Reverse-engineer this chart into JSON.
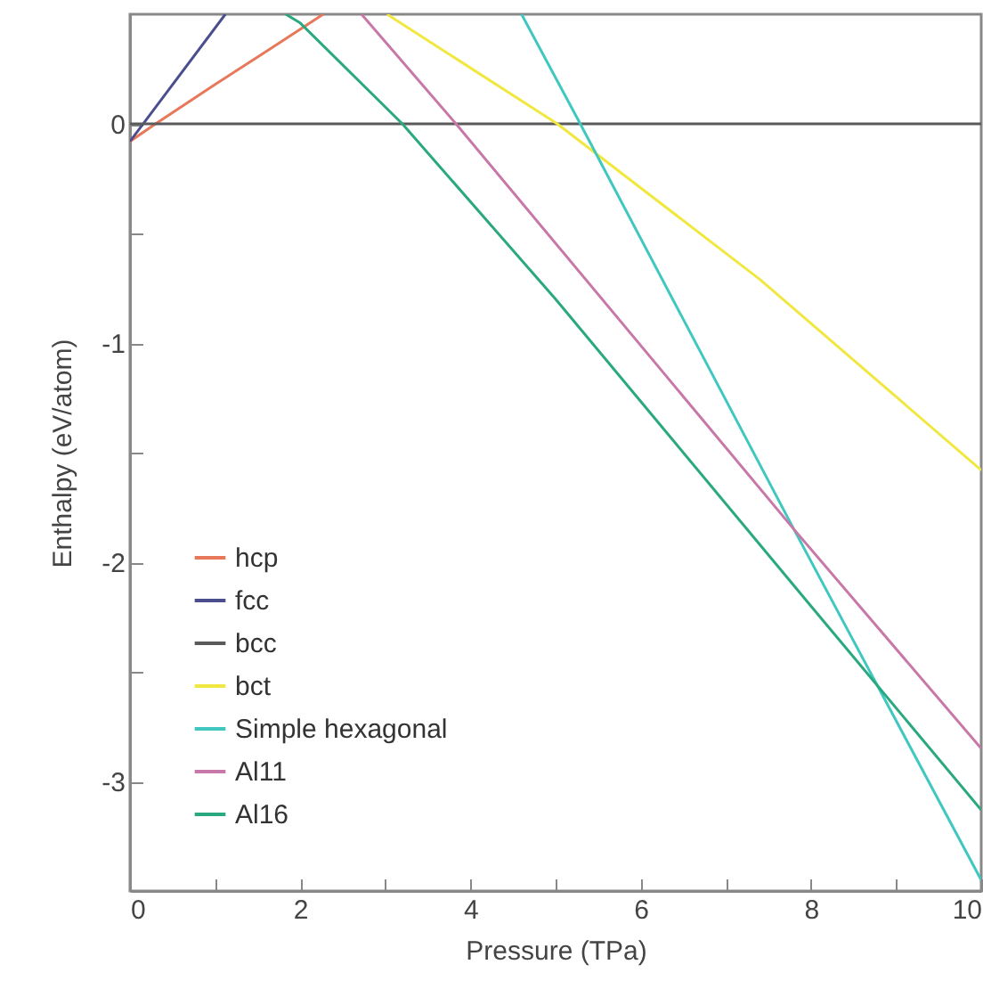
{
  "chart_data": {
    "type": "line",
    "xlabel": "Pressure (TPa)",
    "ylabel": "Enthalpy (eV/atom)",
    "xlim": [
      0,
      10
    ],
    "ylim": [
      -3.5,
      0.5
    ],
    "xticks": [
      0,
      {
        "value": 1,
        "label": null
      },
      2,
      {
        "value": 3,
        "label": null
      },
      4,
      {
        "value": 5,
        "label": null
      },
      6,
      {
        "value": 7,
        "label": null
      },
      8,
      {
        "value": 9,
        "label": null
      },
      10
    ],
    "yticks": [
      {
        "value": -3.5,
        "label": null
      },
      -3,
      {
        "value": -2.5,
        "label": null
      },
      -2,
      {
        "value": -1.5,
        "label": null
      },
      -1,
      {
        "value": -0.5,
        "label": null
      },
      0
    ],
    "grid": false,
    "legend": "bottom left",
    "line_style": "solid",
    "series": [
      {
        "name": "hcp",
        "color": "#e8785a",
        "x": [
          0,
          0.3,
          1,
          1.6,
          2.27
        ],
        "values": [
          -0.08,
          0,
          0.18,
          0.33,
          0.5
        ]
      },
      {
        "name": "fcc",
        "color": "#4a4e8c",
        "x": [
          0,
          1.12
        ],
        "values": [
          -0.08,
          0.5
        ]
      },
      {
        "name": "bcc",
        "color": "#5a5a5a",
        "x": [
          0,
          10
        ],
        "values": [
          0,
          0
        ]
      },
      {
        "name": "bct",
        "color": "#f0e840",
        "x": [
          3.02,
          5.02,
          7.4,
          10
        ],
        "values": [
          0.5,
          0,
          -0.71,
          -1.58
        ]
      },
      {
        "name": "Simple hexagonal",
        "color": "#40c8c0",
        "x": [
          4.6,
          5.29,
          7.8,
          10
        ],
        "values": [
          0.5,
          0,
          -1.85,
          -3.45
        ]
      },
      {
        "name": "Al11",
        "color": "#c878a8",
        "x": [
          2.72,
          3.83,
          7.8,
          10
        ],
        "values": [
          0.5,
          0,
          -1.85,
          -2.85
        ]
      },
      {
        "name": "Al16",
        "color": "#2aa880",
        "x": [
          1.83,
          2,
          3.2,
          5,
          8,
          10
        ],
        "values": [
          0.5,
          0.46,
          0,
          -0.8,
          -2.2,
          -3.13
        ]
      }
    ]
  }
}
